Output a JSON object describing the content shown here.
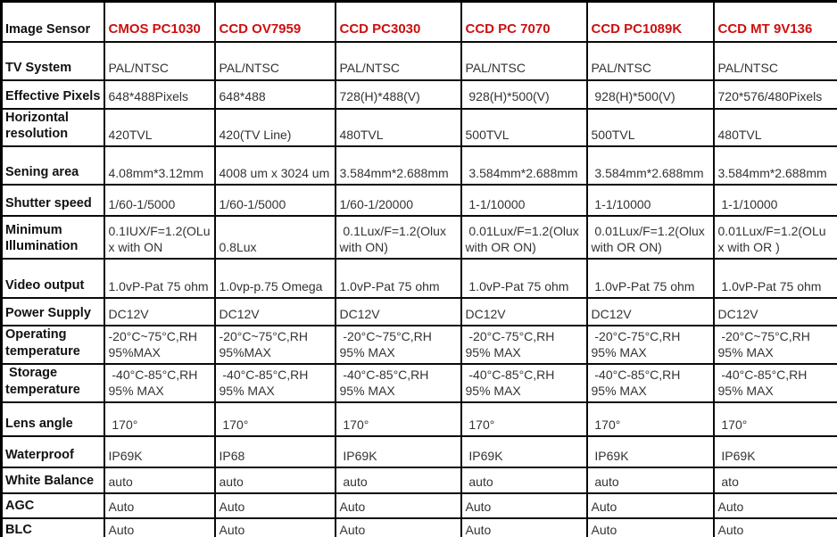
{
  "accent_color": "#cc1010",
  "header": {
    "label": "Image Sensor",
    "models": [
      "CMOS PC1030",
      "CCD OV7959",
      "CCD PC3030",
      "CCD PC 7070",
      "CCD PC1089K",
      "CCD MT 9V136"
    ]
  },
  "rows": [
    {
      "label": "TV System",
      "values": [
        "PAL/NTSC",
        "PAL/NTSC",
        "PAL/NTSC",
        "PAL/NTSC",
        "PAL/NTSC",
        "PAL/NTSC"
      ]
    },
    {
      "label": "Effective Pixels",
      "values": [
        "648*488Pixels",
        "648*488",
        "728(H)*488(V)",
        " 928(H)*500(V)",
        " 928(H)*500(V)",
        "720*576/480Pixels"
      ]
    },
    {
      "label": "Horizontal\nresolution",
      "values": [
        "420TVL",
        "420(TV Line)",
        "480TVL",
        "500TVL",
        "500TVL",
        "480TVL"
      ]
    },
    {
      "label": "Sening area",
      "values": [
        "4.08mm*3.12mm",
        "4008 um x 3024 um",
        "3.584mm*2.688mm",
        " 3.584mm*2.688mm",
        " 3.584mm*2.688mm",
        "3.584mm*2.688mm"
      ]
    },
    {
      "label": "Shutter speed",
      "values": [
        "1/60-1/5000",
        "1/60-1/5000",
        "1/60-1/20000",
        " 1-1/10000",
        " 1-1/10000",
        " 1-1/10000"
      ]
    },
    {
      "label": "Minimum\nIllumination",
      "values": [
        "0.1IUX/F=1.2(OLu\nx with ON",
        "0.8Lux",
        " 0.1Lux/F=1.2(Olux\nwith ON)",
        " 0.01Lux/F=1.2(Olux\nwith OR ON)",
        " 0.01Lux/F=1.2(Olux\nwith OR ON)",
        "0.01Lux/F=1.2(OLu\nx with OR )"
      ]
    },
    {
      "label": "Video output",
      "values": [
        "1.0vP-Pat 75 ohm",
        "1.0vp-p.75 Omega",
        "1.0vP-Pat 75 ohm",
        " 1.0vP-Pat 75 ohm",
        " 1.0vP-Pat 75 ohm",
        " 1.0vP-Pat 75 ohm"
      ]
    },
    {
      "label": "Power Supply",
      "values": [
        "DC12V",
        "DC12V",
        "DC12V",
        "DC12V",
        "DC12V",
        "DC12V"
      ]
    },
    {
      "label": "Operating\ntemperature",
      "values": [
        "-20°C~75°C,RH\n95%MAX",
        "-20°C~75°C,RH\n95%MAX",
        " -20°C~75°C,RH\n95% MAX",
        " -20°C-75°C,RH\n95% MAX",
        " -20°C-75°C,RH\n95% MAX",
        " -20°C~75°C,RH\n95% MAX"
      ]
    },
    {
      "label": " Storage\ntemperature",
      "values": [
        " -40°C-85°C,RH\n95% MAX",
        " -40°C-85°C,RH\n95% MAX",
        " -40°C-85°C,RH\n95% MAX",
        " -40°C-85°C,RH\n95% MAX",
        " -40°C-85°C,RH\n95% MAX",
        " -40°C-85°C,RH\n95% MAX"
      ]
    },
    {
      "label": "Lens angle",
      "values": [
        " 170°",
        " 170°",
        " 170°",
        " 170°",
        " 170°",
        " 170°"
      ]
    },
    {
      "label": "Waterproof",
      "values": [
        "IP69K",
        "IP68",
        " IP69K",
        " IP69K",
        " IP69K",
        " IP69K"
      ]
    },
    {
      "label": "White Balance",
      "values": [
        "auto",
        "auto",
        " auto",
        " auto",
        " auto",
        " ato"
      ]
    },
    {
      "label": "AGC",
      "values": [
        "Auto",
        "Auto",
        "Auto",
        "Auto",
        "Auto",
        "Auto"
      ]
    },
    {
      "label": "BLC",
      "values": [
        "Auto",
        "Auto",
        "Auto",
        "Auto",
        "Auto",
        "Auto"
      ]
    }
  ]
}
